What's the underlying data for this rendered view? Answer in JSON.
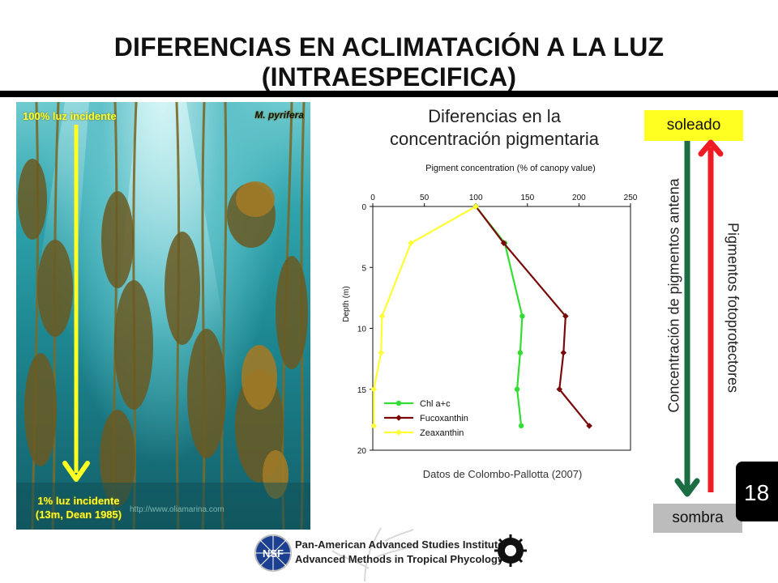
{
  "slide": {
    "title": "DIFERENCIAS EN ACLIMATACIÓN A LA LUZ (INTRAESPECIFICA)",
    "number": "18"
  },
  "photo": {
    "top_label": "100% luz incidente",
    "bottom_label_line1": "1% luz incidente",
    "bottom_label_line2": "(13m, Dean 1985)",
    "species": "M. pyrifera",
    "watermark": "http://www.oliamarina.com",
    "arrow_color": "#ffff22"
  },
  "chart_title_line1": "Diferencias en la",
  "chart_title_line2": "concentración pigmentaria",
  "credit": "Datos de Colombo-Pallotta (2007)",
  "gradient_panel": {
    "top_label": "soleado",
    "bottom_label": "sombra",
    "down_arrow_label": "Concentración de pigmentos antena",
    "up_arrow_label": "Pigmentos fotoprotectores",
    "down_arrow_color": "#1b6e43",
    "up_arrow_color": "#ee1c24"
  },
  "footer": {
    "logo_left": "NSF",
    "line1": "Pan-American Advanced Studies Institute",
    "line2": "Advanced Methods in Tropical Phycology"
  },
  "chart_data": {
    "type": "line",
    "title": "Pigment concentration (% of canopy value)",
    "xlabel": "",
    "ylabel": "Depth (m)",
    "xlim": [
      0,
      250
    ],
    "ylim": [
      0,
      20
    ],
    "y_inverted": true,
    "x_ticks": [
      "0",
      "50",
      "100",
      "150",
      "200",
      "250"
    ],
    "y_ticks": [
      "0",
      "5",
      "10",
      "15",
      "20"
    ],
    "legend_position": "bottom-left",
    "series": [
      {
        "name": "Chl a+c",
        "color": "#33dd33",
        "marker": "circle",
        "points": [
          [
            100,
            0
          ],
          [
            128,
            3
          ],
          [
            145,
            9
          ],
          [
            143,
            12
          ],
          [
            140,
            15
          ],
          [
            144,
            18
          ]
        ]
      },
      {
        "name": "Fucoxanthin",
        "color": "#7a0a0a",
        "marker": "diamond",
        "points": [
          [
            100,
            0
          ],
          [
            127,
            3
          ],
          [
            187,
            9
          ],
          [
            185,
            12
          ],
          [
            181,
            15
          ],
          [
            210,
            18
          ]
        ]
      },
      {
        "name": "Zeaxanthin",
        "color": "#ffff33",
        "marker": "diamond",
        "points": [
          [
            100,
            0
          ],
          [
            37,
            3
          ],
          [
            9,
            9
          ],
          [
            8,
            12
          ],
          [
            1,
            15
          ],
          [
            1,
            18
          ]
        ]
      }
    ]
  }
}
